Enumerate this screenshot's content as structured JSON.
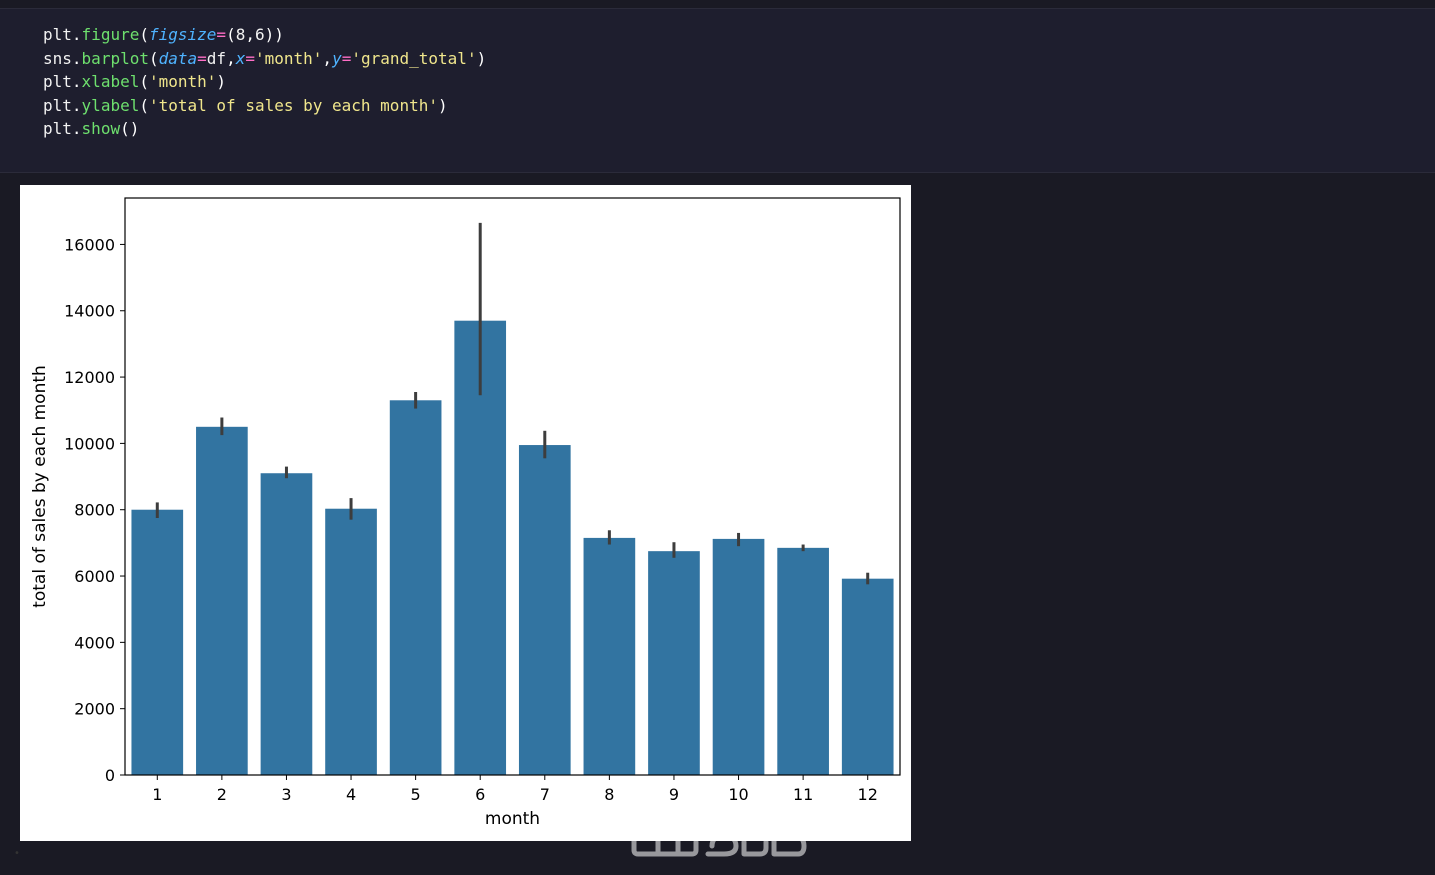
{
  "code_cell": {
    "lines": [
      [
        {
          "t": "plt",
          "c": "id"
        },
        {
          "t": ".",
          "c": "p"
        },
        {
          "t": "figure",
          "c": "fn"
        },
        {
          "t": "(",
          "c": "p"
        },
        {
          "t": "figsize",
          "c": "kw"
        },
        {
          "t": "=",
          "c": "op"
        },
        {
          "t": "(",
          "c": "p"
        },
        {
          "t": "8",
          "c": "num"
        },
        {
          "t": ",",
          "c": "p"
        },
        {
          "t": "6",
          "c": "num"
        },
        {
          "t": "))",
          "c": "p"
        }
      ],
      [
        {
          "t": "sns",
          "c": "id"
        },
        {
          "t": ".",
          "c": "p"
        },
        {
          "t": "barplot",
          "c": "fn"
        },
        {
          "t": "(",
          "c": "p"
        },
        {
          "t": "data",
          "c": "kw"
        },
        {
          "t": "=",
          "c": "op"
        },
        {
          "t": "df",
          "c": "id"
        },
        {
          "t": ",",
          "c": "p"
        },
        {
          "t": "x",
          "c": "kw"
        },
        {
          "t": "=",
          "c": "op"
        },
        {
          "t": "'month'",
          "c": "str"
        },
        {
          "t": ",",
          "c": "p"
        },
        {
          "t": "y",
          "c": "kw"
        },
        {
          "t": "=",
          "c": "op"
        },
        {
          "t": "'grand_total'",
          "c": "str"
        },
        {
          "t": ")",
          "c": "p"
        }
      ],
      [
        {
          "t": "plt",
          "c": "id"
        },
        {
          "t": ".",
          "c": "p"
        },
        {
          "t": "xlabel",
          "c": "fn"
        },
        {
          "t": "(",
          "c": "p"
        },
        {
          "t": "'month'",
          "c": "str"
        },
        {
          "t": ")",
          "c": "p"
        }
      ],
      [
        {
          "t": "plt",
          "c": "id"
        },
        {
          "t": ".",
          "c": "p"
        },
        {
          "t": "ylabel",
          "c": "fn"
        },
        {
          "t": "(",
          "c": "p"
        },
        {
          "t": "'total of sales by each month'",
          "c": "str"
        },
        {
          "t": ")",
          "c": "p"
        }
      ],
      [
        {
          "t": "plt",
          "c": "id"
        },
        {
          "t": ".",
          "c": "p"
        },
        {
          "t": "show",
          "c": "fn"
        },
        {
          "t": "()",
          "c": "p"
        }
      ]
    ]
  },
  "colors": {
    "bar": "#3274a1",
    "error_bar": "#3d3d3d",
    "code_background": "#1e1e2e",
    "page_background": "#1a1a24"
  },
  "watermark": {
    "text": "خمسات"
  },
  "chart_data": {
    "type": "bar",
    "title": "",
    "xlabel": "month",
    "ylabel": "total of sales by each month",
    "categories": [
      "1",
      "2",
      "3",
      "4",
      "5",
      "6",
      "7",
      "8",
      "9",
      "10",
      "11",
      "12"
    ],
    "values": [
      8000,
      10500,
      9100,
      8030,
      11300,
      13700,
      9950,
      7150,
      6750,
      7120,
      6850,
      5920
    ],
    "error_low": [
      7750,
      10250,
      8950,
      7700,
      11050,
      11450,
      9550,
      6950,
      6550,
      6900,
      6750,
      5750
    ],
    "error_high": [
      8220,
      10780,
      9300,
      8350,
      11550,
      16650,
      10380,
      7380,
      7020,
      7300,
      6950,
      6100
    ],
    "ylim": [
      0,
      17400
    ],
    "yticks": [
      0,
      2000,
      4000,
      6000,
      8000,
      10000,
      12000,
      14000,
      16000
    ],
    "grid": false,
    "legend": "none"
  }
}
